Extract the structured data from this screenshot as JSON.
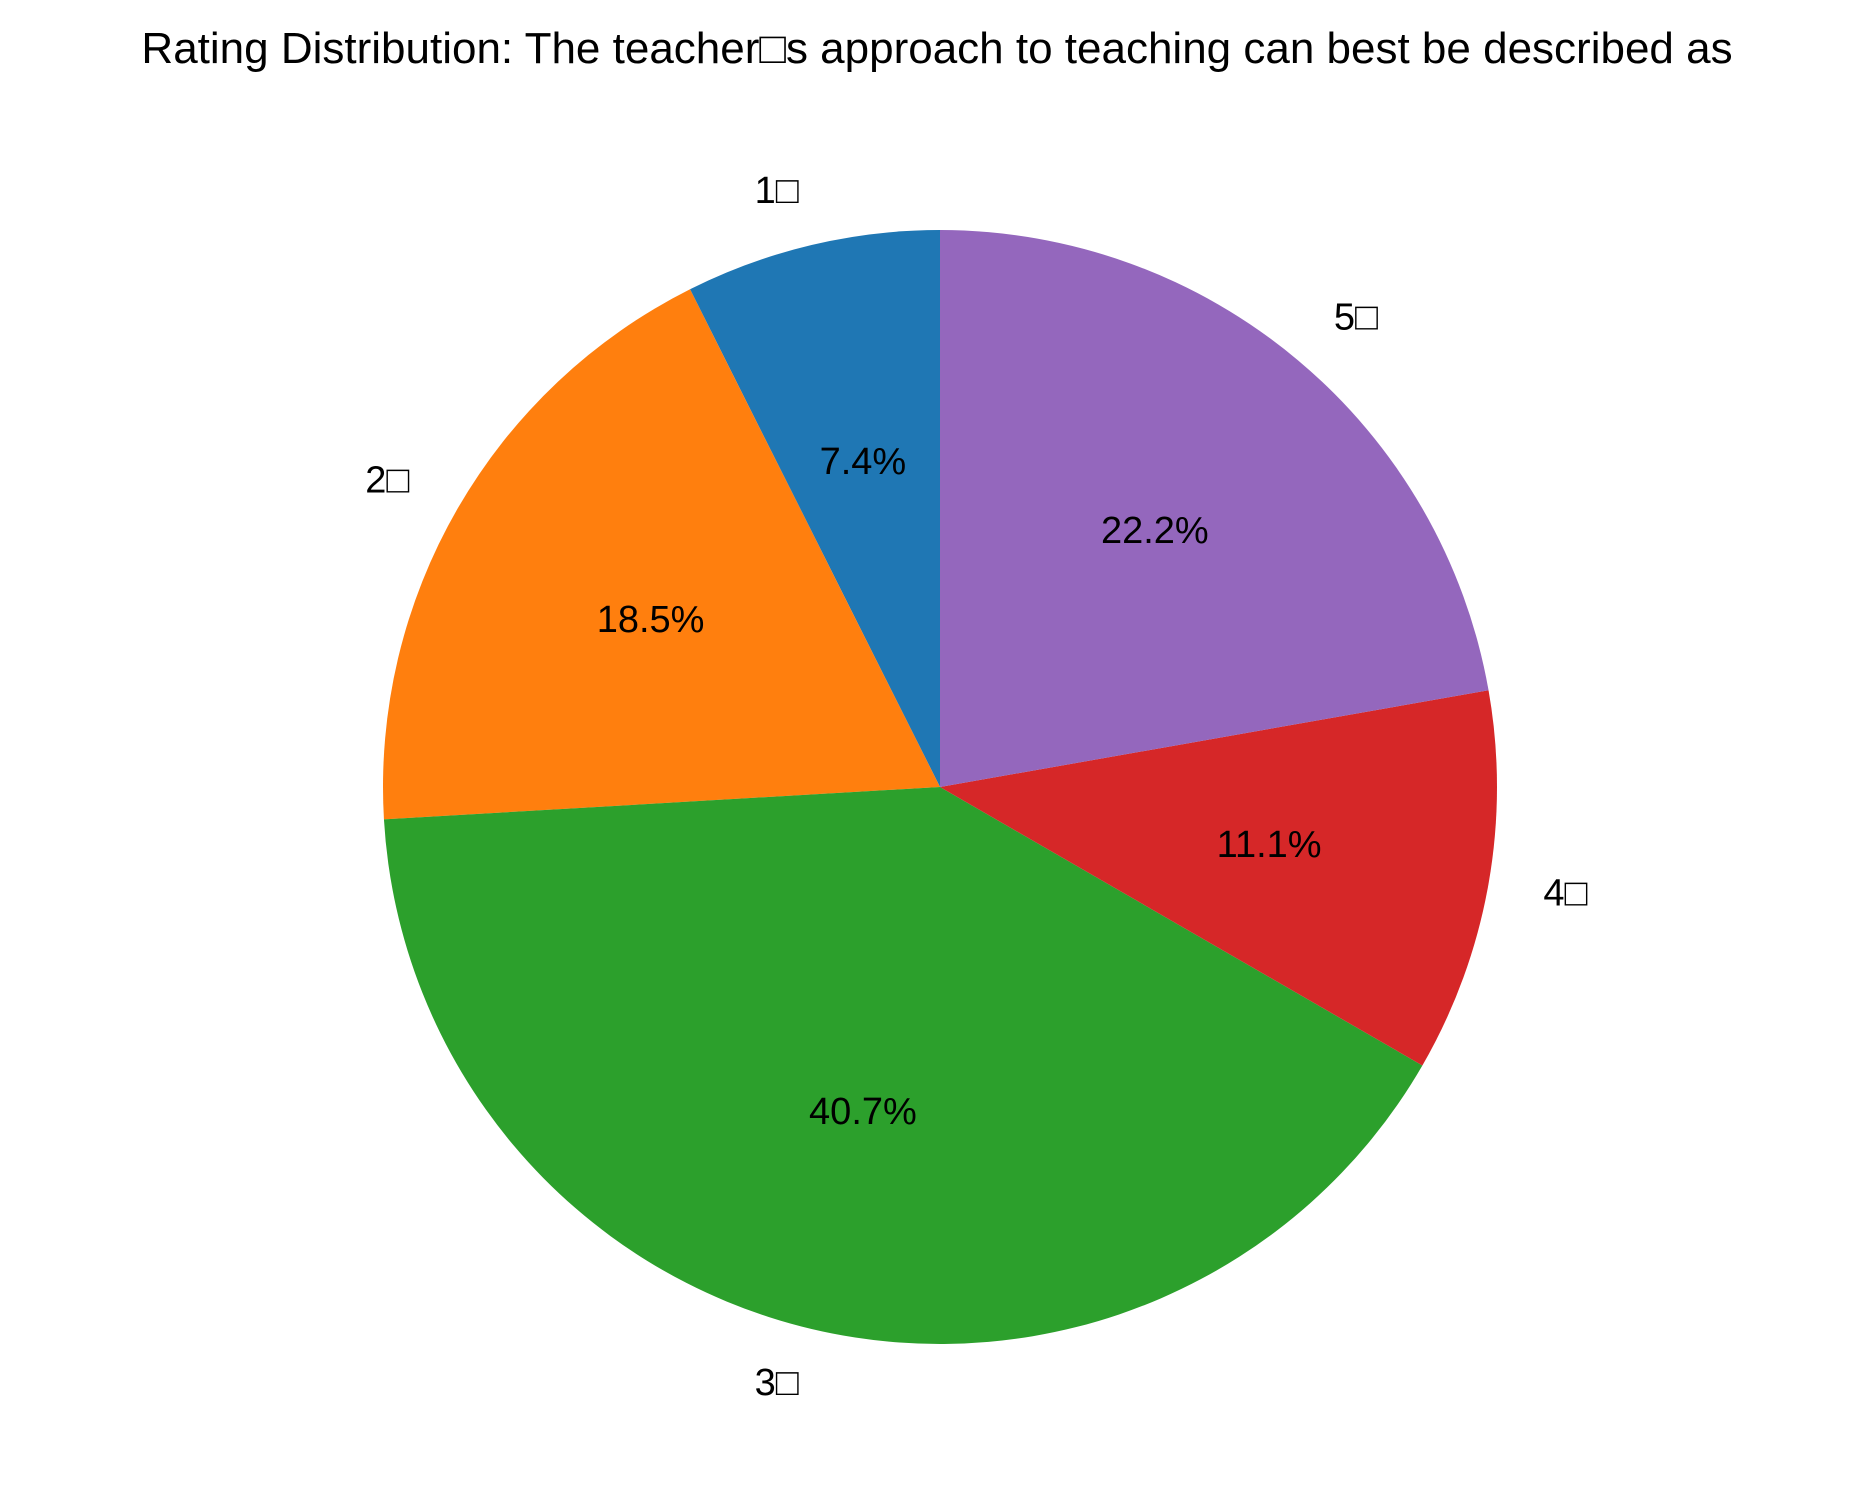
{
  "chart_data": {
    "type": "pie",
    "title": "Rating Distribution: The teacher□s approach to teaching can best be described as",
    "start_angle_deg": 90,
    "direction": "counterclockwise",
    "slices": [
      {
        "label": "1□",
        "value": 7.4,
        "pct_label": "7.4%",
        "color": "#1f77b4"
      },
      {
        "label": "2□",
        "value": 18.5,
        "pct_label": "18.5%",
        "color": "#ff7f0e"
      },
      {
        "label": "3□",
        "value": 40.7,
        "pct_label": "40.7%",
        "color": "#2ca02c"
      },
      {
        "label": "4□",
        "value": 11.1,
        "pct_label": "11.1%",
        "color": "#d62728"
      },
      {
        "label": "5□",
        "value": 22.2,
        "pct_label": "22.2%",
        "color": "#9467bd"
      }
    ]
  }
}
